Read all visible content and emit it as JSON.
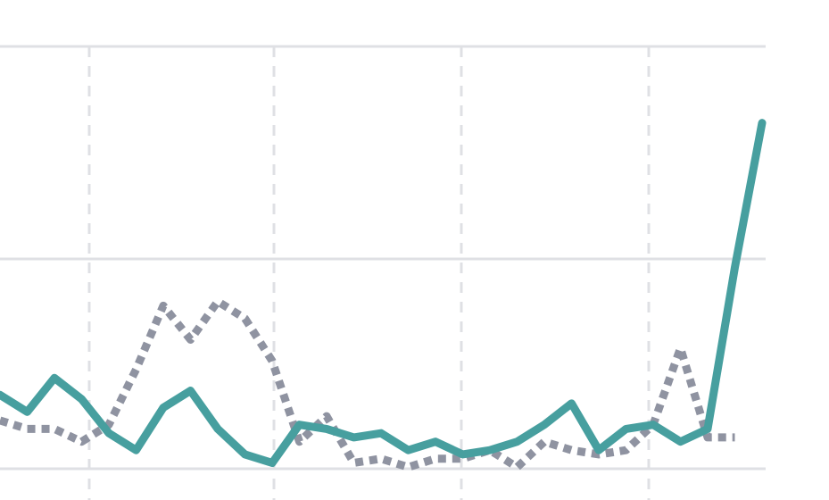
{
  "chart_data": {
    "type": "line",
    "title": "",
    "xlabel": "",
    "ylabel": "",
    "grid": true,
    "legend": "none",
    "x_range": [
      0,
      29
    ],
    "ylim": [
      0,
      100
    ],
    "series": [
      {
        "style": "solid",
        "color": "#479f9f",
        "values": [
          18,
          14,
          22,
          17,
          9,
          5,
          15,
          19,
          10,
          4,
          2,
          11,
          10,
          8,
          9,
          5,
          7,
          4,
          5,
          7,
          11,
          16,
          5,
          10,
          11,
          7,
          10,
          48,
          82
        ]
      },
      {
        "style": "dotted",
        "color": "#8f93a1",
        "values": [
          12,
          10,
          10,
          7,
          11,
          24,
          39,
          31,
          40,
          36,
          26,
          7,
          13,
          2,
          3,
          1,
          3,
          3,
          5,
          1,
          7,
          5,
          4,
          5,
          11,
          29,
          8,
          8
        ]
      }
    ],
    "colors": {
      "grid": "#dfe0e4",
      "primary": "#479f9f",
      "secondary": "#8f93a1"
    }
  }
}
